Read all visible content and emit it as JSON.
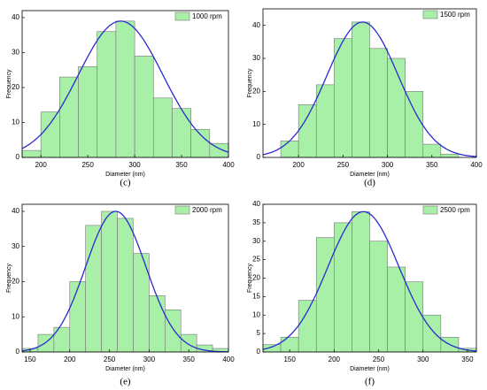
{
  "chart_data": [
    {
      "type": "histogram",
      "name": "1000 rpm",
      "panel": "(c)",
      "x_label": "Diameter (nm)",
      "y_label": "Frequency",
      "bins": [
        180,
        200,
        220,
        240,
        260,
        280,
        300,
        320,
        340,
        360,
        380,
        400
      ],
      "values": [
        2,
        13,
        23,
        26,
        36,
        39,
        29,
        17,
        14,
        8,
        4
      ],
      "color": "#a8f0a8",
      "fit": {
        "mean": 285,
        "sd": 45,
        "peak": 39,
        "color": "#2a2ad0"
      },
      "xlim": [
        180,
        400
      ],
      "xticks": [
        200,
        250,
        300,
        350,
        400
      ],
      "ylim": [
        0,
        42
      ],
      "yticks": [
        0,
        10,
        20,
        30,
        40
      ]
    },
    {
      "type": "histogram",
      "name": "1500 rpm",
      "panel": "(d)",
      "x_label": "Diameter (nm)",
      "y_label": "Frequency",
      "bins": [
        180,
        200,
        220,
        240,
        260,
        280,
        300,
        320,
        340,
        360,
        380
      ],
      "values": [
        5,
        16,
        22,
        36,
        41,
        33,
        30,
        20,
        4,
        1
      ],
      "color": "#a8f0a8",
      "fit": {
        "mean": 272,
        "sd": 40,
        "peak": 41,
        "color": "#2a2ad0"
      },
      "xlim": [
        160,
        400
      ],
      "xticks": [
        200,
        250,
        300,
        350,
        400
      ],
      "ylim": [
        0,
        45
      ],
      "yticks": [
        0,
        10,
        20,
        30,
        40
      ]
    },
    {
      "type": "histogram",
      "name": "2000 rpm",
      "panel": "(e)",
      "x_label": "Diameter (nm)",
      "y_label": "Frequency",
      "bins": [
        140,
        160,
        180,
        200,
        220,
        240,
        260,
        280,
        300,
        320,
        340,
        360,
        380,
        400
      ],
      "values": [
        1,
        5,
        7,
        20,
        36,
        40,
        38,
        28,
        16,
        12,
        5,
        2,
        1
      ],
      "color": "#a8f0a8",
      "fit": {
        "mean": 258,
        "sd": 38,
        "peak": 40,
        "color": "#2a2ad0"
      },
      "xlim": [
        140,
        400
      ],
      "xticks": [
        150,
        200,
        250,
        300,
        350,
        400
      ],
      "ylim": [
        0,
        42
      ],
      "yticks": [
        0,
        10,
        20,
        30,
        40
      ]
    },
    {
      "type": "histogram",
      "name": "2500 rpm",
      "panel": "(f)",
      "x_label": "Diameter (nm)",
      "y_label": "Frequency",
      "bins": [
        120,
        140,
        160,
        180,
        200,
        220,
        240,
        260,
        280,
        300,
        320,
        340,
        360
      ],
      "values": [
        2,
        4,
        14,
        31,
        35,
        38,
        30,
        23,
        19,
        10,
        4,
        1
      ],
      "color": "#a8f0a8",
      "fit": {
        "mean": 233,
        "sd": 40,
        "peak": 38,
        "color": "#2a2ad0"
      },
      "xlim": [
        120,
        360
      ],
      "xticks": [
        150,
        200,
        250,
        300,
        350
      ],
      "ylim": [
        0,
        40
      ],
      "yticks": [
        0,
        5,
        10,
        15,
        20,
        25,
        30,
        35,
        40
      ]
    }
  ]
}
